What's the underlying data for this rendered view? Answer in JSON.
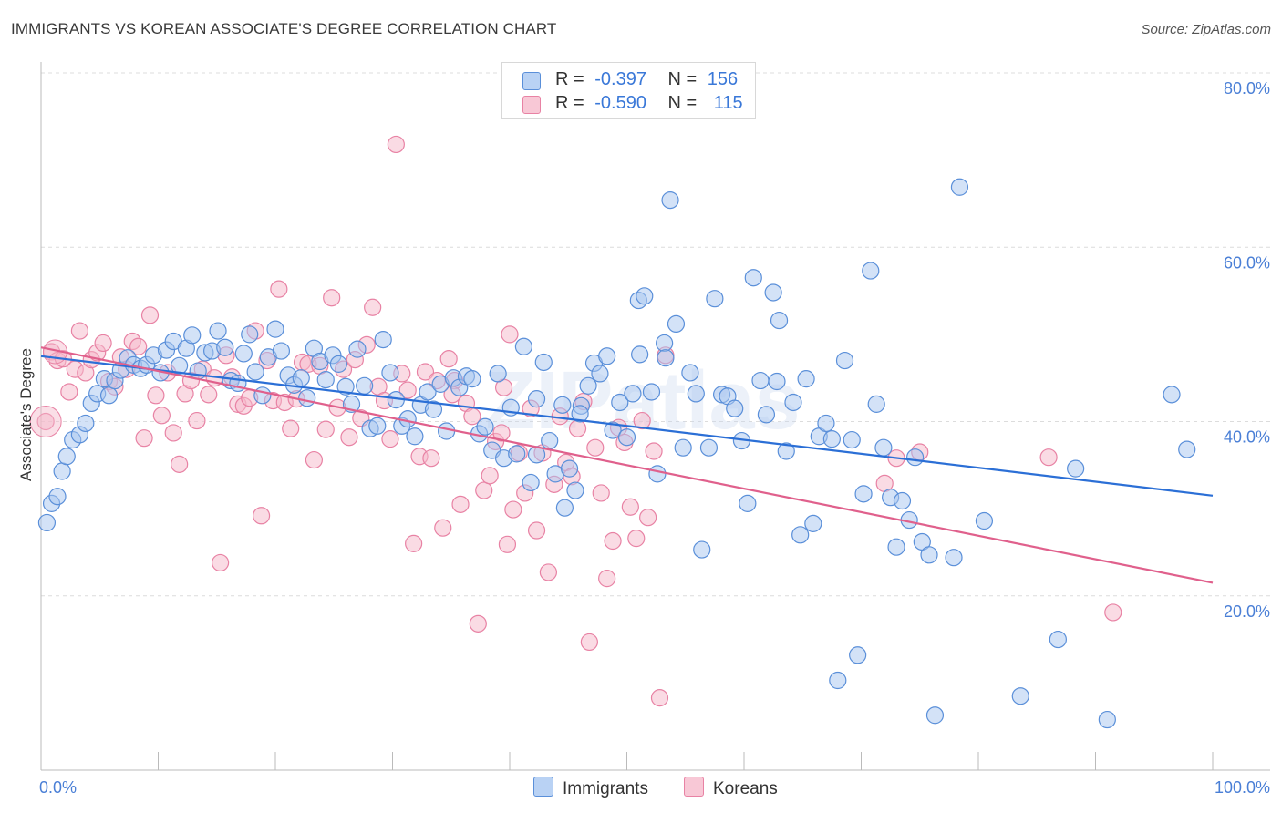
{
  "title": "IMMIGRANTS VS KOREAN ASSOCIATE'S DEGREE CORRELATION CHART",
  "source": "Source: ZipAtlas.com",
  "watermark": "ZIPatlas",
  "legend": {
    "r_label": "R =",
    "n_label": "N =",
    "rows": [
      {
        "r": "-0.397",
        "n": "156"
      },
      {
        "r": "-0.590",
        "n": "115"
      }
    ]
  },
  "bottom_legend": [
    "Immigrants",
    "Koreans"
  ],
  "colors": {
    "immigrants_fill": "#a8c6f0",
    "immigrants_stroke": "#5a8fd9",
    "immigrants_line": "#2b6fd6",
    "koreans_fill": "#f5b7c9",
    "koreans_stroke": "#e882a4",
    "koreans_line": "#e0608c",
    "tick_label": "#4a7fd6"
  },
  "chart_data": {
    "type": "scatter",
    "xlabel": "",
    "ylabel": "Associate's Degree",
    "xlim": [
      0,
      100
    ],
    "ylim": [
      0,
      80
    ],
    "x_tick_labels": [
      "0.0%",
      "100.0%"
    ],
    "y_ticks": [
      20,
      40,
      60,
      80
    ],
    "y_tick_labels": [
      "20.0%",
      "40.0%",
      "60.0%",
      "80.0%"
    ],
    "grid": true,
    "series": [
      {
        "name": "Immigrants",
        "trend": {
          "x": [
            0,
            100
          ],
          "y": [
            47.5,
            31.5
          ]
        },
        "points": [
          [
            0.5,
            28.4
          ],
          [
            0.9,
            30.6
          ],
          [
            1.4,
            31.4
          ],
          [
            1.8,
            34.3
          ],
          [
            2.2,
            36.0
          ],
          [
            2.7,
            37.9
          ],
          [
            3.3,
            38.5
          ],
          [
            3.8,
            39.8
          ],
          [
            4.3,
            42.1
          ],
          [
            4.8,
            43.2
          ],
          [
            5.4,
            44.9
          ],
          [
            5.8,
            43.0
          ],
          [
            6.3,
            44.7
          ],
          [
            6.8,
            45.9
          ],
          [
            7.4,
            47.3
          ],
          [
            7.9,
            46.5
          ],
          [
            8.5,
            46.1
          ],
          [
            9.0,
            46.5
          ],
          [
            9.6,
            47.6
          ],
          [
            10.2,
            45.6
          ],
          [
            10.7,
            48.2
          ],
          [
            11.3,
            49.2
          ],
          [
            11.8,
            46.4
          ],
          [
            12.4,
            48.4
          ],
          [
            12.9,
            49.9
          ],
          [
            13.4,
            45.8
          ],
          [
            14.0,
            47.9
          ],
          [
            14.6,
            48.1
          ],
          [
            15.1,
            50.4
          ],
          [
            15.7,
            48.5
          ],
          [
            16.2,
            44.7
          ],
          [
            16.8,
            44.4
          ],
          [
            17.3,
            47.8
          ],
          [
            17.8,
            50.0
          ],
          [
            18.3,
            45.7
          ],
          [
            18.9,
            43.0
          ],
          [
            19.4,
            47.4
          ],
          [
            20.0,
            50.6
          ],
          [
            20.5,
            48.1
          ],
          [
            21.1,
            45.3
          ],
          [
            21.6,
            44.2
          ],
          [
            22.2,
            45.0
          ],
          [
            22.7,
            42.7
          ],
          [
            23.3,
            48.4
          ],
          [
            23.8,
            46.9
          ],
          [
            24.3,
            44.8
          ],
          [
            24.9,
            47.6
          ],
          [
            25.4,
            46.6
          ],
          [
            26.0,
            44.0
          ],
          [
            26.5,
            42.0
          ],
          [
            27.0,
            48.3
          ],
          [
            27.6,
            44.1
          ],
          [
            28.1,
            39.2
          ],
          [
            28.7,
            39.5
          ],
          [
            29.2,
            49.4
          ],
          [
            29.8,
            45.6
          ],
          [
            30.3,
            42.5
          ],
          [
            30.8,
            39.5
          ],
          [
            31.3,
            40.3
          ],
          [
            31.9,
            38.3
          ],
          [
            32.4,
            41.9
          ],
          [
            33.0,
            43.4
          ],
          [
            33.5,
            41.4
          ],
          [
            34.1,
            44.3
          ],
          [
            34.6,
            38.9
          ],
          [
            35.2,
            45.0
          ],
          [
            35.7,
            43.9
          ],
          [
            36.3,
            45.2
          ],
          [
            36.8,
            44.9
          ],
          [
            37.4,
            38.6
          ],
          [
            37.9,
            39.4
          ],
          [
            38.5,
            36.7
          ],
          [
            39.0,
            45.5
          ],
          [
            39.5,
            35.8
          ],
          [
            40.1,
            41.6
          ],
          [
            40.6,
            36.3
          ],
          [
            41.2,
            48.6
          ],
          [
            41.8,
            33.0
          ],
          [
            42.3,
            42.6
          ],
          [
            42.9,
            46.8
          ],
          [
            43.4,
            37.8
          ],
          [
            43.9,
            34.0
          ],
          [
            44.5,
            41.9
          ],
          [
            45.1,
            34.6
          ],
          [
            45.6,
            32.1
          ],
          [
            46.1,
            41.8
          ],
          [
            46.7,
            44.1
          ],
          [
            47.2,
            46.7
          ],
          [
            47.7,
            45.5
          ],
          [
            48.3,
            47.5
          ],
          [
            48.8,
            39.0
          ],
          [
            49.4,
            42.2
          ],
          [
            50.0,
            38.2
          ],
          [
            50.5,
            43.2
          ],
          [
            51.0,
            53.9
          ],
          [
            51.5,
            54.4
          ],
          [
            52.1,
            43.4
          ],
          [
            52.6,
            34.0
          ],
          [
            53.2,
            49.0
          ],
          [
            53.7,
            65.4
          ],
          [
            54.2,
            51.2
          ],
          [
            54.8,
            37.0
          ],
          [
            55.4,
            45.6
          ],
          [
            55.9,
            43.2
          ],
          [
            56.4,
            25.3
          ],
          [
            57.0,
            37.0
          ],
          [
            57.5,
            54.1
          ],
          [
            58.1,
            43.1
          ],
          [
            58.6,
            42.9
          ],
          [
            59.2,
            41.5
          ],
          [
            59.8,
            37.8
          ],
          [
            60.3,
            30.6
          ],
          [
            60.8,
            56.5
          ],
          [
            61.4,
            44.7
          ],
          [
            61.9,
            40.8
          ],
          [
            62.5,
            54.8
          ],
          [
            63.0,
            51.6
          ],
          [
            63.6,
            36.6
          ],
          [
            64.2,
            42.2
          ],
          [
            64.8,
            27.0
          ],
          [
            65.3,
            44.9
          ],
          [
            65.9,
            28.3
          ],
          [
            66.4,
            38.3
          ],
          [
            67.0,
            39.8
          ],
          [
            67.5,
            38.0
          ],
          [
            68.0,
            10.3
          ],
          [
            68.6,
            47.0
          ],
          [
            69.2,
            37.9
          ],
          [
            69.7,
            13.2
          ],
          [
            70.2,
            31.7
          ],
          [
            70.8,
            57.3
          ],
          [
            71.3,
            42.0
          ],
          [
            71.9,
            37.0
          ],
          [
            72.5,
            31.3
          ],
          [
            73.0,
            25.6
          ],
          [
            73.5,
            30.9
          ],
          [
            74.1,
            28.7
          ],
          [
            74.6,
            35.9
          ],
          [
            75.2,
            26.2
          ],
          [
            75.8,
            24.7
          ],
          [
            76.3,
            6.3
          ],
          [
            77.9,
            24.4
          ],
          [
            78.4,
            66.9
          ],
          [
            80.5,
            28.6
          ],
          [
            83.6,
            8.5
          ],
          [
            86.8,
            15.0
          ],
          [
            88.3,
            34.6
          ],
          [
            91.0,
            5.8
          ],
          [
            96.5,
            43.1
          ],
          [
            97.8,
            36.8
          ],
          [
            44.7,
            30.1
          ],
          [
            53.3,
            47.3
          ],
          [
            62.8,
            44.6
          ],
          [
            46.0,
            40.9
          ],
          [
            51.1,
            47.7
          ],
          [
            42.3,
            36.2
          ]
        ]
      },
      {
        "name": "Koreans",
        "trend": {
          "x": [
            0,
            100
          ],
          "y": [
            48.5,
            21.5
          ]
        },
        "points": [
          [
            0.4,
            40.0
          ],
          [
            0.9,
            48.0
          ],
          [
            1.4,
            47.0
          ],
          [
            1.9,
            47.2
          ],
          [
            2.4,
            43.4
          ],
          [
            2.9,
            46.0
          ],
          [
            3.3,
            50.4
          ],
          [
            3.8,
            45.6
          ],
          [
            4.3,
            47.1
          ],
          [
            4.8,
            47.9
          ],
          [
            5.3,
            49.0
          ],
          [
            5.8,
            44.6
          ],
          [
            6.3,
            44.0
          ],
          [
            6.8,
            47.4
          ],
          [
            7.3,
            46.0
          ],
          [
            7.8,
            49.2
          ],
          [
            8.3,
            48.6
          ],
          [
            8.8,
            38.1
          ],
          [
            9.3,
            52.2
          ],
          [
            9.8,
            43.0
          ],
          [
            10.3,
            40.7
          ],
          [
            10.8,
            45.6
          ],
          [
            11.3,
            38.7
          ],
          [
            11.8,
            35.1
          ],
          [
            12.3,
            43.2
          ],
          [
            12.8,
            44.7
          ],
          [
            13.3,
            40.1
          ],
          [
            13.8,
            46.0
          ],
          [
            14.3,
            43.1
          ],
          [
            14.8,
            45.0
          ],
          [
            15.3,
            23.8
          ],
          [
            15.8,
            47.6
          ],
          [
            16.3,
            45.1
          ],
          [
            16.8,
            42.0
          ],
          [
            17.3,
            41.8
          ],
          [
            17.8,
            42.7
          ],
          [
            18.3,
            50.4
          ],
          [
            18.8,
            29.2
          ],
          [
            19.3,
            47.0
          ],
          [
            19.8,
            42.4
          ],
          [
            20.3,
            55.2
          ],
          [
            20.8,
            42.2
          ],
          [
            21.3,
            39.2
          ],
          [
            21.8,
            42.6
          ],
          [
            22.3,
            46.8
          ],
          [
            22.8,
            46.6
          ],
          [
            23.3,
            35.6
          ],
          [
            23.8,
            46.4
          ],
          [
            24.3,
            39.1
          ],
          [
            24.8,
            54.2
          ],
          [
            25.3,
            41.6
          ],
          [
            25.8,
            46.0
          ],
          [
            26.3,
            38.2
          ],
          [
            26.8,
            47.1
          ],
          [
            27.3,
            40.4
          ],
          [
            27.8,
            48.8
          ],
          [
            28.3,
            53.1
          ],
          [
            28.8,
            44.0
          ],
          [
            29.3,
            42.4
          ],
          [
            29.8,
            38.0
          ],
          [
            30.3,
            71.8
          ],
          [
            30.8,
            45.5
          ],
          [
            31.3,
            43.6
          ],
          [
            31.8,
            26.0
          ],
          [
            32.3,
            36.0
          ],
          [
            32.8,
            45.7
          ],
          [
            33.3,
            35.8
          ],
          [
            33.8,
            44.7
          ],
          [
            34.3,
            27.8
          ],
          [
            34.8,
            47.2
          ],
          [
            35.3,
            44.7
          ],
          [
            35.8,
            30.5
          ],
          [
            36.3,
            42.1
          ],
          [
            36.8,
            40.6
          ],
          [
            37.3,
            16.8
          ],
          [
            37.8,
            32.1
          ],
          [
            38.3,
            33.8
          ],
          [
            38.8,
            37.7
          ],
          [
            39.3,
            38.7
          ],
          [
            39.8,
            25.9
          ],
          [
            40.3,
            29.9
          ],
          [
            40.8,
            36.4
          ],
          [
            41.3,
            31.8
          ],
          [
            41.8,
            41.5
          ],
          [
            42.3,
            27.5
          ],
          [
            42.8,
            36.4
          ],
          [
            43.3,
            22.7
          ],
          [
            43.8,
            32.8
          ],
          [
            44.3,
            40.6
          ],
          [
            44.8,
            35.3
          ],
          [
            45.3,
            33.7
          ],
          [
            45.8,
            39.2
          ],
          [
            46.3,
            42.3
          ],
          [
            46.8,
            14.7
          ],
          [
            47.3,
            37.0
          ],
          [
            47.8,
            31.8
          ],
          [
            48.3,
            22.0
          ],
          [
            48.8,
            26.3
          ],
          [
            49.3,
            39.3
          ],
          [
            49.8,
            37.6
          ],
          [
            50.3,
            30.2
          ],
          [
            50.8,
            26.6
          ],
          [
            51.3,
            40.1
          ],
          [
            51.8,
            29.0
          ],
          [
            52.3,
            36.6
          ],
          [
            52.8,
            8.3
          ],
          [
            53.3,
            47.6
          ],
          [
            40.0,
            50.0
          ],
          [
            35.1,
            43.1
          ],
          [
            39.5,
            43.9
          ],
          [
            72.0,
            32.9
          ],
          [
            75.0,
            36.5
          ],
          [
            86.0,
            35.9
          ],
          [
            91.5,
            18.1
          ],
          [
            73.0,
            35.8
          ]
        ]
      }
    ]
  }
}
